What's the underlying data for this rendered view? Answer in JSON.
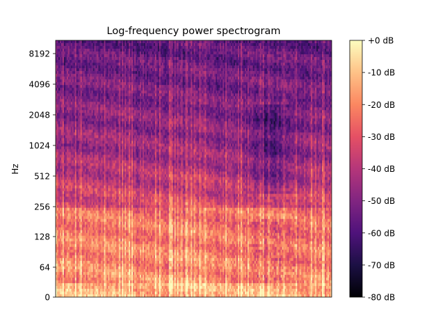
{
  "chart_data": {
    "type": "heatmap",
    "title": "Log-frequency power spectrogram",
    "xlabel": "",
    "ylabel": "Hz",
    "yscale": "log",
    "y_ticks": [
      0,
      64,
      128,
      256,
      512,
      1024,
      2048,
      4096,
      8192
    ],
    "y_tick_labels": [
      "0",
      "64",
      "128",
      "256",
      "512",
      "1024",
      "2048",
      "4096",
      "8192"
    ],
    "colorbar": {
      "ticks": [
        0,
        -10,
        -20,
        -30,
        -40,
        -50,
        -60,
        -70,
        -80
      ],
      "tick_labels": [
        "+0 dB",
        "-10 dB",
        "-20 dB",
        "-30 dB",
        "-40 dB",
        "-50 dB",
        "-60 dB",
        "-70 dB",
        "-80 dB"
      ],
      "range": [
        -80,
        0
      ],
      "colormap": "magma",
      "colors": [
        "#000004",
        "#1c1044",
        "#4f127b",
        "#812581",
        "#b5367a",
        "#e55064",
        "#fb8761",
        "#fec287",
        "#fcfdbf"
      ]
    },
    "grid": false
  }
}
